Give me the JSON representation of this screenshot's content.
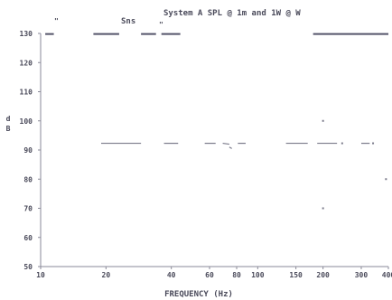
{
  "chart_data": {
    "type": "line",
    "title": "System A  SPL @ 1m and 1W @ W",
    "header_left_mark": "\"",
    "legend_label": "Sns",
    "legend_mark": "\"",
    "xlabel": "FREQUENCY (Hz)",
    "ylabel": "dB",
    "x_scale": "log",
    "xlim": [
      10,
      400
    ],
    "ylim": [
      50,
      130
    ],
    "x_ticks": [
      {
        "value": 10,
        "label": "10"
      },
      {
        "value": 20,
        "label": "20"
      },
      {
        "value": 40,
        "label": "40"
      },
      {
        "value": 60,
        "label": "60"
      },
      {
        "value": 80,
        "label": "80"
      },
      {
        "value": 100,
        "label": "100"
      },
      {
        "value": 150,
        "label": "150"
      },
      {
        "value": 200,
        "label": "200"
      },
      {
        "value": 300,
        "label": "300"
      },
      {
        "value": 400,
        "label": "400"
      }
    ],
    "y_ticks": [
      {
        "value": 130,
        "label": "130"
      },
      {
        "value": 120,
        "label": "120"
      },
      {
        "value": 110,
        "label": "110"
      },
      {
        "value": 100,
        "label": "100"
      },
      {
        "value": 90,
        "label": "90"
      },
      {
        "value": 80,
        "label": "80"
      },
      {
        "value": 70,
        "label": "70"
      },
      {
        "value": 60,
        "label": "60"
      },
      {
        "value": 50,
        "label": "50"
      }
    ],
    "grid": false,
    "series": [
      {
        "color": "#7a7a8a",
        "segments": [
          [
            [
              19,
              92.3
            ],
            [
              29,
              92.3
            ]
          ],
          [
            [
              37,
              92.3
            ],
            [
              43,
              92.3
            ]
          ],
          [
            [
              57,
              92.3
            ],
            [
              64,
              92.3
            ]
          ],
          [
            [
              69,
              92.3
            ],
            [
              74,
              92.0
            ]
          ],
          [
            [
              74,
              91.0
            ],
            [
              76,
              90.5
            ]
          ],
          [
            [
              81,
              92.3
            ],
            [
              88,
              92.3
            ]
          ],
          [
            [
              135,
              92.3
            ],
            [
              170,
              92.3
            ]
          ],
          [
            [
              188,
              92.3
            ],
            [
              232,
              92.3
            ]
          ],
          [
            [
              300,
              92.3
            ],
            [
              328,
              92.3
            ]
          ]
        ]
      }
    ],
    "points": [
      {
        "x": 200,
        "y": 100
      },
      {
        "x": 200,
        "y": 70
      },
      {
        "x": 390,
        "y": 80
      },
      {
        "x": 245,
        "y": 92.3
      },
      {
        "x": 340,
        "y": 92.3
      }
    ],
    "top_trace": [
      [
        [
          10.5,
          129.8
        ],
        [
          11.5,
          129.8
        ]
      ],
      [
        [
          17.5,
          129.8
        ],
        [
          23,
          129.8
        ]
      ],
      [
        [
          29,
          129.8
        ],
        [
          34,
          129.8
        ]
      ],
      [
        [
          36,
          129.8
        ],
        [
          44,
          129.8
        ]
      ],
      [
        [
          180,
          129.8
        ],
        [
          400,
          129.8
        ]
      ]
    ]
  }
}
